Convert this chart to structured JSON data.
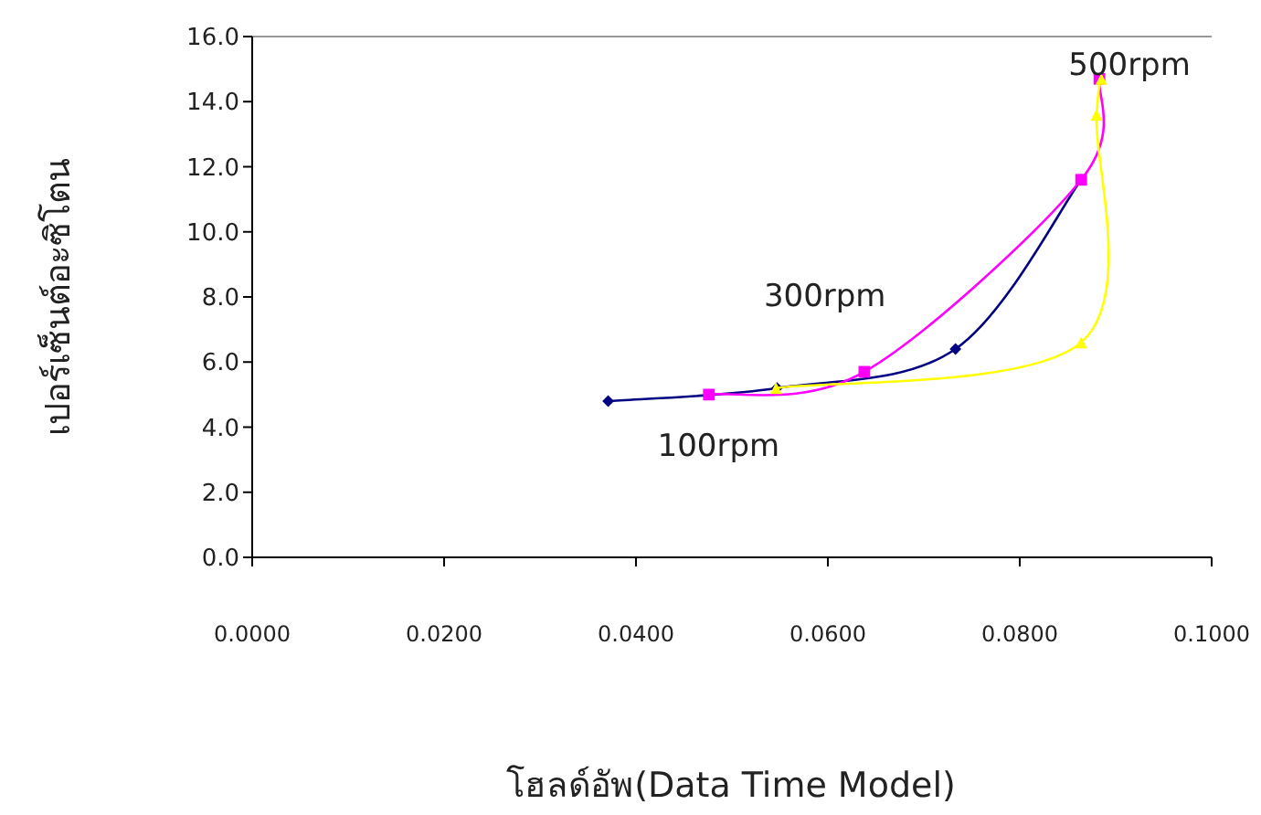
{
  "chart_data": {
    "type": "line",
    "xlabel": "โฮลด์อัพ(Data Time Model)",
    "ylabel": "เปอร์เซ็นต์อะซิโตน",
    "xlim": [
      0,
      0.1
    ],
    "ylim": [
      0,
      16
    ],
    "xticks": [
      {
        "value": 0,
        "label": "0.0000"
      },
      {
        "value": 0.02,
        "label": "0.0200"
      },
      {
        "value": 0.04,
        "label": "0.0400"
      },
      {
        "value": 0.06,
        "label": "0.0600"
      },
      {
        "value": 0.08,
        "label": "0.0800"
      },
      {
        "value": 0.1,
        "label": "0.1000"
      }
    ],
    "yticks": [
      {
        "value": 0,
        "label": "0.0"
      },
      {
        "value": 2,
        "label": "2.0"
      },
      {
        "value": 4,
        "label": "4.0"
      },
      {
        "value": 6,
        "label": "6.0"
      },
      {
        "value": 8,
        "label": "8.0"
      },
      {
        "value": 10,
        "label": "10.0"
      },
      {
        "value": 12,
        "label": "12.0"
      },
      {
        "value": 14,
        "label": "14.0"
      },
      {
        "value": 16,
        "label": "16.0"
      }
    ],
    "grid": false,
    "series": [
      {
        "name": "100rpm",
        "color": "#000080",
        "marker": "diamond",
        "x": [
          0.0371,
          0.0547,
          0.0733,
          0.0864
        ],
        "values": [
          4.8,
          5.2,
          6.4,
          11.6
        ]
      },
      {
        "name": "300rpm",
        "color": "#ff00ff",
        "marker": "square",
        "x": [
          0.0476,
          0.0638,
          0.0864,
          0.0883
        ],
        "values": [
          5.0,
          5.7,
          11.6,
          14.7
        ]
      },
      {
        "name": "500rpm",
        "color": "#ffff00",
        "marker": "triangle",
        "x": [
          0.0546,
          0.0864,
          0.088,
          0.0885
        ],
        "values": [
          5.2,
          6.6,
          13.6,
          14.7
        ]
      }
    ]
  }
}
